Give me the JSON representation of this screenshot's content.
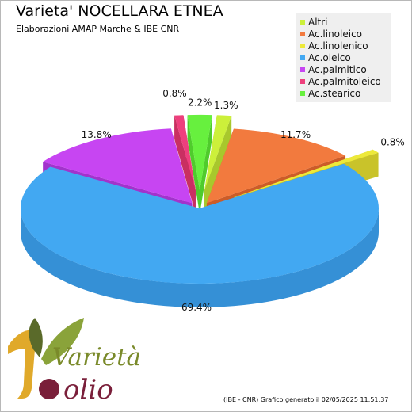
{
  "title": "Varieta' NOCELLARA ETNEA",
  "subtitle": "Elaborazioni AMAP Marche & IBE CNR",
  "footer": "(IBE - CNR) Grafico generato il 02/05/2025 11:51:37",
  "logo": {
    "word1": "Varietà",
    "word2": "olio"
  },
  "chart_data": {
    "type": "pie",
    "title": "Varieta' NOCELLARA ETNEA",
    "subtitle": "Elaborazioni AMAP Marche & IBE CNR",
    "legend_position": "top-right",
    "slices": [
      {
        "name": "Altri",
        "value": 1.3,
        "label": "1.3%",
        "color": "#ccf03a",
        "side_color": "#a8c82c"
      },
      {
        "name": "Ac.linoleico",
        "value": 11.7,
        "label": "11.7%",
        "color": "#f27a3e",
        "side_color": "#cc5c28"
      },
      {
        "name": "Ac.linolenico",
        "value": 0.8,
        "label": "0.8%",
        "color": "#ede93a",
        "side_color": "#c9c32a"
      },
      {
        "name": "Ac.oleico",
        "value": 69.4,
        "label": "69.4%",
        "color": "#42a8f2",
        "side_color": "#3590d6"
      },
      {
        "name": "Ac.palmitico",
        "value": 13.8,
        "label": "13.8%",
        "color": "#c745f2",
        "side_color": "#a233cc"
      },
      {
        "name": "Ac.palmitoleico",
        "value": 0.8,
        "label": "0.8%",
        "color": "#ee3f7d",
        "side_color": "#c92f62"
      },
      {
        "name": "Ac.stearico",
        "value": 2.2,
        "label": "2.2%",
        "color": "#67f03e",
        "side_color": "#4fcc2c"
      }
    ]
  }
}
